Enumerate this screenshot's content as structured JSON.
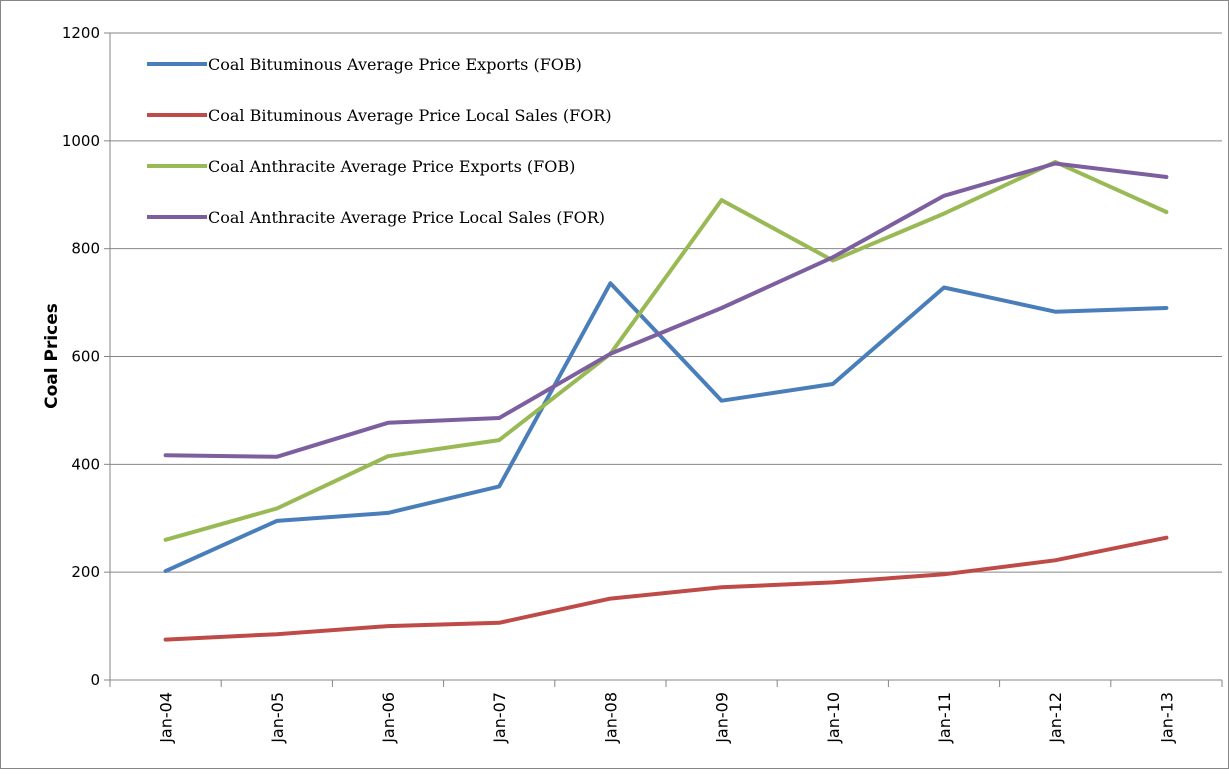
{
  "chart_data": {
    "type": "line",
    "title": "",
    "xlabel": "",
    "ylabel": "Coal Prices",
    "x": [
      "Jan-04",
      "Jan-05",
      "Jan-06",
      "Jan-07",
      "Jan-08",
      "Jan-09",
      "Jan-10",
      "Jan-11",
      "Jan-12",
      "Jan-13"
    ],
    "ylim": [
      0,
      1200
    ],
    "yticks": [
      0,
      200,
      400,
      600,
      800,
      1000,
      1200
    ],
    "grid": "horizontal",
    "legend_position": "top-left (inside plot)",
    "series": [
      {
        "name": "Coal Bituminous Average Price Exports (FOB)",
        "color": "#4a7ebb",
        "values": [
          202,
          295,
          310,
          359,
          736,
          518,
          549,
          728,
          683,
          690
        ]
      },
      {
        "name": "Coal Bituminous Average Price Local Sales (FOR)",
        "color": "#be4b48",
        "values": [
          75,
          85,
          100,
          106,
          151,
          172,
          181,
          196,
          222,
          264
        ]
      },
      {
        "name": "Coal Anthracite Average Price Exports (FOB)",
        "color": "#98b954",
        "values": [
          260,
          318,
          415,
          445,
          605,
          890,
          778,
          865,
          961,
          868
        ]
      },
      {
        "name": "Coal Anthracite Average Price Local Sales (FOR)",
        "color": "#7d5fa0",
        "values": [
          417,
          414,
          477,
          486,
          605,
          690,
          784,
          898,
          958,
          933
        ]
      }
    ]
  }
}
